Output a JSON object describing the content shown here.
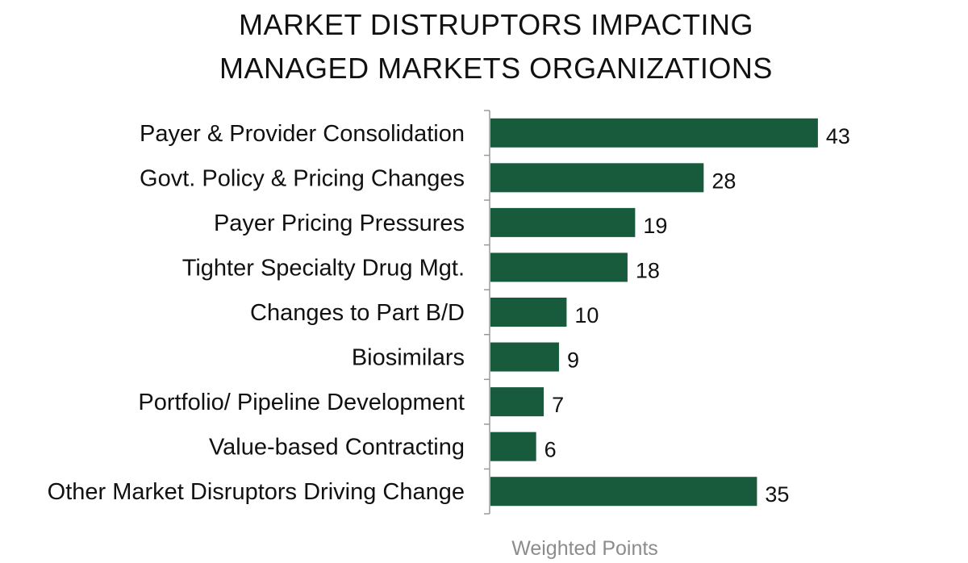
{
  "chart_data": {
    "type": "bar",
    "orientation": "horizontal",
    "title_lines": [
      "MARKET DISTRUPTORS IMPACTING",
      "MANAGED MARKETS ORGANIZATIONS"
    ],
    "xlabel": "Weighted Points",
    "ylabel": "",
    "categories": [
      "Payer & Provider Consolidation",
      "Govt. Policy & Pricing Changes",
      "Payer Pricing Pressures",
      "Tighter Specialty Drug Mgt.",
      "Changes to Part B/D",
      "Biosimilars",
      "Portfolio/ Pipeline Development",
      "Value-based Contracting",
      "Other Market Disruptors Driving Change"
    ],
    "values": [
      43,
      28,
      19,
      18,
      10,
      9,
      7,
      6,
      35
    ],
    "value_labels": [
      "43",
      "28",
      "19",
      "18",
      "10",
      "9",
      "7",
      "6",
      "35"
    ],
    "xlim": [
      0,
      45
    ],
    "grid": false,
    "legend": "none",
    "bar_color": "#175a3c",
    "axis_color": "#9a9a9a",
    "xlabel_color": "#8c8c8c"
  }
}
